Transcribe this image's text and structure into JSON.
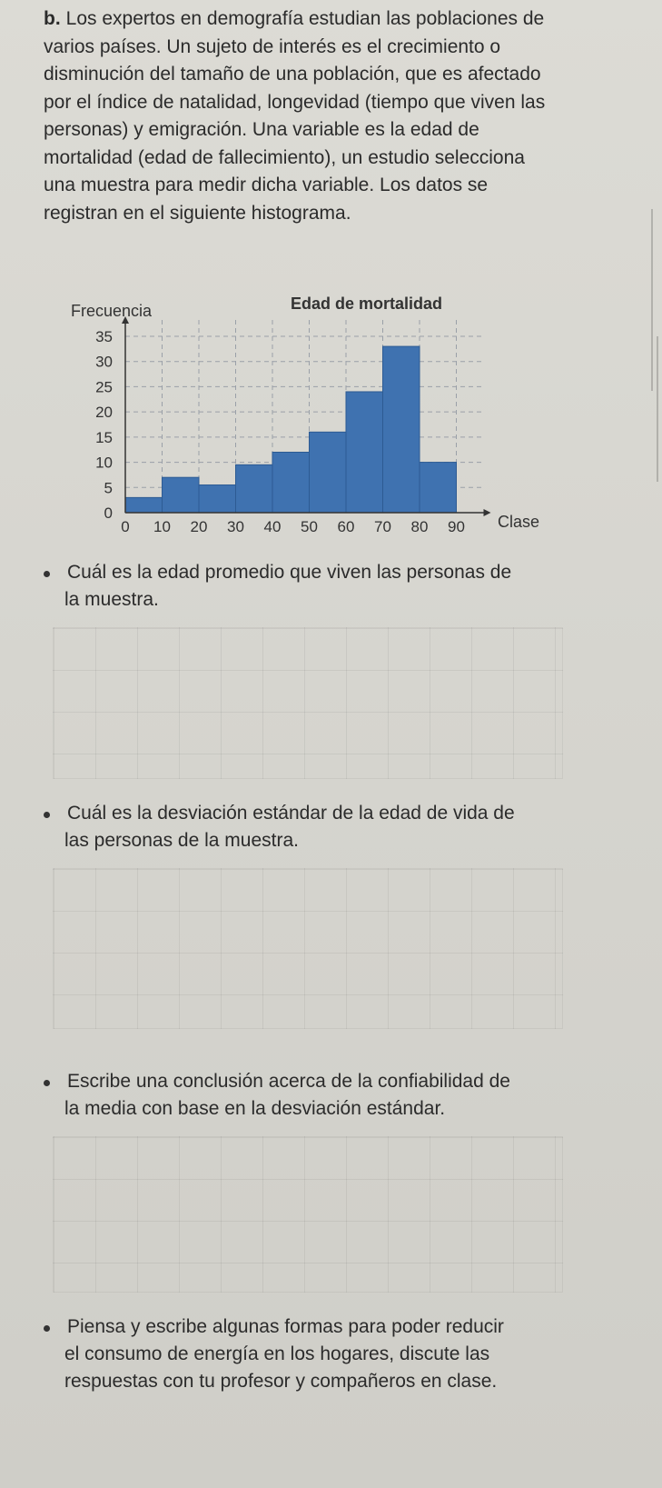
{
  "problem": {
    "label": "b.",
    "text": "Los expertos en demografía estudian las poblaciones de varios países. Un sujeto de interés es el crecimiento o disminución del tamaño de una población, que es afectado por el índice de natalidad, longevidad (tiempo que viven las personas) y emigración. Una variable es la edad de mortalidad (edad de fallecimiento), un estudio selecciona una muestra para medir dicha variable. Los datos se registran en el siguiente histograma."
  },
  "chart_data": {
    "type": "bar",
    "title": "Edad de mortalidad",
    "ylabel": "Frecuencia",
    "xlabel": "Clase",
    "x_ticks": [
      "0",
      "10",
      "20",
      "30",
      "40",
      "50",
      "60",
      "70",
      "80",
      "90"
    ],
    "y_ticks": [
      "0",
      "5",
      "10",
      "15",
      "20",
      "25",
      "30",
      "35"
    ],
    "ylim": [
      0,
      35
    ],
    "bin_edges": [
      0,
      10,
      20,
      30,
      40,
      50,
      60,
      70,
      80,
      90
    ],
    "values": [
      3,
      7,
      5.5,
      9.5,
      12,
      16,
      24,
      33,
      10
    ],
    "bar_color": "#3f72b0",
    "grid": true
  },
  "questions": [
    {
      "line1": "Cuál es la edad promedio que viven las personas de",
      "line2": "la muestra."
    },
    {
      "line1": "Cuál es la desviación estándar de la edad de vida de",
      "line2": "las personas de la muestra."
    },
    {
      "line1": "Escribe una conclusión acerca de la confiabilidad de",
      "line2": "la media con base en la desviación estándar."
    },
    {
      "line1": "Piensa y escribe algunas formas para poder reducir",
      "line2": "el consumo de energía en los hogares, discute las",
      "line3": "respuestas con tu profesor y compañeros en clase."
    }
  ]
}
